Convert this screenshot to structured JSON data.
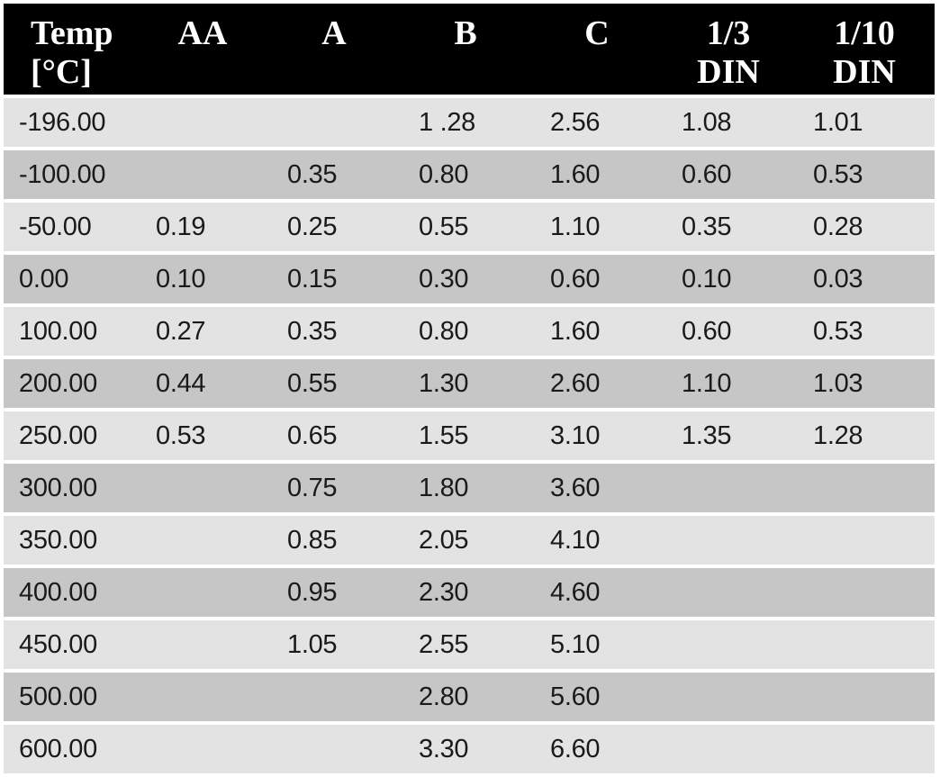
{
  "table": {
    "headers": [
      {
        "line1": "Temp",
        "line2": "[°C]"
      },
      {
        "line1": "AA",
        "line2": ""
      },
      {
        "line1": "A",
        "line2": ""
      },
      {
        "line1": "B",
        "line2": ""
      },
      {
        "line1": "C",
        "line2": ""
      },
      {
        "line1": "1/3",
        "line2": "DIN"
      },
      {
        "line1": "1/10",
        "line2": "DIN"
      }
    ],
    "rows": [
      [
        "-196.00",
        "",
        "",
        "1 .28",
        "2.56",
        "1.08",
        "1.01"
      ],
      [
        "-100.00",
        "",
        "0.35",
        "0.80",
        "1.60",
        "0.60",
        "0.53"
      ],
      [
        "-50.00",
        "0.19",
        "0.25",
        "0.55",
        "1.10",
        "0.35",
        "0.28"
      ],
      [
        "0.00",
        "0.10",
        "0.15",
        "0.30",
        "0.60",
        "0.10",
        "0.03"
      ],
      [
        "100.00",
        "0.27",
        "0.35",
        "0.80",
        "1.60",
        "0.60",
        "0.53"
      ],
      [
        "200.00",
        "0.44",
        "0.55",
        "1.30",
        "2.60",
        "1.10",
        "1.03"
      ],
      [
        "250.00",
        "0.53",
        "0.65",
        "1.55",
        "3.10",
        "1.35",
        "1.28"
      ],
      [
        "300.00",
        "",
        "0.75",
        "1.80",
        "3.60",
        "",
        ""
      ],
      [
        "350.00",
        "",
        "0.85",
        "2.05",
        "4.10",
        "",
        ""
      ],
      [
        "400.00",
        "",
        "0.95",
        "2.30",
        "4.60",
        "",
        ""
      ],
      [
        "450.00",
        "",
        "1.05",
        "2.55",
        "5.10",
        "",
        ""
      ],
      [
        "500.00",
        "",
        "",
        "2.80",
        "5.60",
        "",
        ""
      ],
      [
        "600.00",
        "",
        "",
        "3.30",
        "6.60",
        "",
        ""
      ]
    ]
  },
  "colors": {
    "header_bg": "#000000",
    "header_text": "#ffffff",
    "row_light": "#e3e3e3",
    "row_dark": "#c6c6c6",
    "body_text": "#1a1a1a",
    "separator": "#ffffff"
  }
}
